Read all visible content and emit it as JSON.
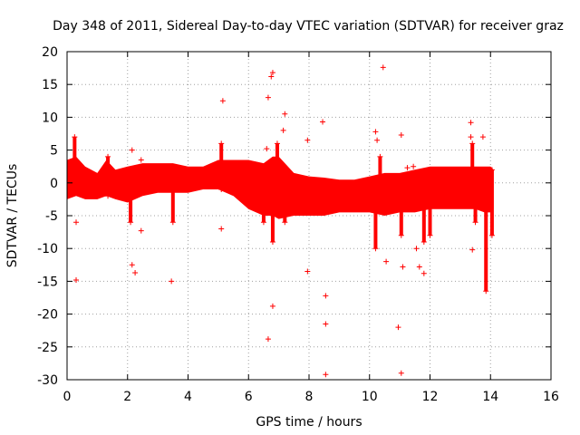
{
  "chart_data": {
    "type": "scatter",
    "title": "Day 348 of 2011, Sidereal Day-to-day VTEC variation (SDTVAR) for receiver graz",
    "xlabel": "GPS time / hours",
    "ylabel": "SDTVAR / TECUs",
    "xlim": [
      0,
      16
    ],
    "ylim": [
      -30,
      20
    ],
    "xticks": [
      0,
      2,
      4,
      6,
      8,
      10,
      12,
      14,
      16
    ],
    "yticks": [
      -30,
      -25,
      -20,
      -15,
      -10,
      -5,
      0,
      5,
      10,
      15,
      20
    ],
    "grid": true,
    "marker": "+",
    "color": "#ff0000",
    "dense_band": {
      "x": [
        0.0,
        0.3,
        0.6,
        1.0,
        1.3,
        1.6,
        2.0,
        2.5,
        3.0,
        3.5,
        4.0,
        4.5,
        5.0,
        5.5,
        6.0,
        6.5,
        6.8,
        7.0,
        7.5,
        8.0,
        8.5,
        9.0,
        9.5,
        10.0,
        10.5,
        11.0,
        11.5,
        12.0,
        12.5,
        13.0,
        13.5,
        13.8,
        14.0,
        14.1
      ],
      "upper": [
        3.5,
        4.0,
        2.5,
        1.5,
        3.5,
        2.0,
        2.5,
        3.0,
        3.0,
        3.0,
        2.5,
        2.5,
        3.5,
        3.5,
        3.5,
        3.0,
        4.0,
        4.0,
        1.5,
        1.0,
        0.8,
        0.5,
        0.5,
        1.0,
        1.5,
        1.5,
        2.0,
        2.5,
        2.5,
        2.5,
        2.5,
        2.5,
        2.5,
        2.0
      ],
      "lower": [
        -2.5,
        -2.0,
        -2.5,
        -2.5,
        -2.0,
        -2.5,
        -3.0,
        -2.0,
        -1.5,
        -1.5,
        -1.5,
        -1.0,
        -1.0,
        -2.0,
        -4.0,
        -5.0,
        -5.0,
        -5.5,
        -5.0,
        -5.0,
        -5.0,
        -4.5,
        -4.5,
        -4.5,
        -5.0,
        -4.5,
        -4.5,
        -4.0,
        -4.0,
        -4.0,
        -4.0,
        -4.5,
        -4.5,
        -4.0
      ]
    },
    "spikes": [
      {
        "x": 0.25,
        "y_top": 7,
        "y_bottom": -1
      },
      {
        "x": 1.35,
        "y_top": 4,
        "y_bottom": -2
      },
      {
        "x": 2.1,
        "y_top": 0,
        "y_bottom": -6
      },
      {
        "x": 3.5,
        "y_top": 0,
        "y_bottom": -6
      },
      {
        "x": 5.1,
        "y_top": 6,
        "y_bottom": -1
      },
      {
        "x": 6.5,
        "y_top": 0,
        "y_bottom": -6
      },
      {
        "x": 6.8,
        "y_top": 0,
        "y_bottom": -9
      },
      {
        "x": 6.95,
        "y_top": 6,
        "y_bottom": -2
      },
      {
        "x": 7.2,
        "y_top": 0,
        "y_bottom": -6
      },
      {
        "x": 10.2,
        "y_top": 0,
        "y_bottom": -10
      },
      {
        "x": 10.35,
        "y_top": 4,
        "y_bottom": -2
      },
      {
        "x": 11.05,
        "y_top": 0,
        "y_bottom": -8
      },
      {
        "x": 11.8,
        "y_top": 0,
        "y_bottom": -9
      },
      {
        "x": 12.0,
        "y_top": 0,
        "y_bottom": -8
      },
      {
        "x": 13.4,
        "y_top": 6,
        "y_bottom": 0
      },
      {
        "x": 13.5,
        "y_top": 0,
        "y_bottom": -6
      },
      {
        "x": 13.85,
        "y_top": 0,
        "y_bottom": -16.5
      },
      {
        "x": 14.05,
        "y_top": 2,
        "y_bottom": -8
      }
    ],
    "outliers": [
      {
        "x": 0.3,
        "y": -6
      },
      {
        "x": 0.3,
        "y": -14.8
      },
      {
        "x": 2.15,
        "y": 5
      },
      {
        "x": 2.45,
        "y": 3.5
      },
      {
        "x": 2.15,
        "y": -12.5
      },
      {
        "x": 2.25,
        "y": -13.7
      },
      {
        "x": 2.45,
        "y": -7.3
      },
      {
        "x": 3.45,
        "y": -15
      },
      {
        "x": 5.15,
        "y": 12.5
      },
      {
        "x": 5.1,
        "y": -7
      },
      {
        "x": 6.65,
        "y": 13
      },
      {
        "x": 6.75,
        "y": 16.2
      },
      {
        "x": 6.8,
        "y": 16.8
      },
      {
        "x": 6.6,
        "y": 5.2
      },
      {
        "x": 7.2,
        "y": 10.5
      },
      {
        "x": 7.15,
        "y": 8
      },
      {
        "x": 6.65,
        "y": -23.8
      },
      {
        "x": 6.8,
        "y": -18.8
      },
      {
        "x": 7.95,
        "y": 6.5
      },
      {
        "x": 7.95,
        "y": -13.5
      },
      {
        "x": 8.45,
        "y": 9.3
      },
      {
        "x": 8.55,
        "y": -17.2
      },
      {
        "x": 8.55,
        "y": -21.5
      },
      {
        "x": 8.55,
        "y": -29.2
      },
      {
        "x": 10.2,
        "y": 7.8
      },
      {
        "x": 10.25,
        "y": 6.5
      },
      {
        "x": 10.45,
        "y": 17.6
      },
      {
        "x": 10.55,
        "y": -12
      },
      {
        "x": 10.95,
        "y": -22
      },
      {
        "x": 11.05,
        "y": -29
      },
      {
        "x": 11.05,
        "y": 7.3
      },
      {
        "x": 11.25,
        "y": 2.3
      },
      {
        "x": 11.45,
        "y": 2.5
      },
      {
        "x": 11.1,
        "y": -12.8
      },
      {
        "x": 11.55,
        "y": -10
      },
      {
        "x": 11.65,
        "y": -12.8
      },
      {
        "x": 11.8,
        "y": -13.8
      },
      {
        "x": 13.35,
        "y": 9.2
      },
      {
        "x": 13.35,
        "y": 7
      },
      {
        "x": 13.75,
        "y": 7
      },
      {
        "x": 13.4,
        "y": -10.2
      }
    ]
  }
}
